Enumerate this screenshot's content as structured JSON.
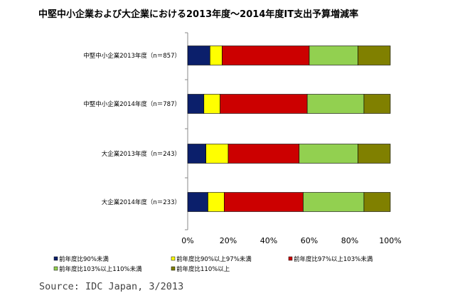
{
  "chart_data": {
    "type": "bar",
    "orientation": "horizontal",
    "stacked": "percent",
    "title": "中堅中小企業および大企業における2013年度～2014年度IT支出予算増減率",
    "categories": [
      "中堅中小企業2013年度（n＝857）",
      "中堅中小企業2014年度（n＝787）",
      "大企業2013年度（n＝243）",
      "大企業2014年度（n＝233）"
    ],
    "series": [
      {
        "name": "前年度比90%未満",
        "color": "#0b1f6b",
        "values": [
          11,
          8,
          9,
          10
        ]
      },
      {
        "name": "前年度比90%以上97%未満",
        "color": "#ffff00",
        "values": [
          6,
          8,
          11,
          8
        ]
      },
      {
        "name": "前年度比97%以上103%未満",
        "color": "#cc0000",
        "values": [
          43,
          43,
          35,
          39
        ]
      },
      {
        "name": "前年度比103%以上110%未満",
        "color": "#92d050",
        "values": [
          24,
          28,
          29,
          30
        ]
      },
      {
        "name": "前年度比110%以上",
        "color": "#808000",
        "values": [
          16,
          13,
          16,
          13
        ]
      }
    ],
    "xlim": [
      0,
      100
    ],
    "xticks": [
      "0%",
      "20%",
      "40%",
      "60%",
      "80%",
      "100%"
    ],
    "legend_position": "bottom",
    "grid": false
  },
  "source": "Source: IDC Japan, 3/2013"
}
